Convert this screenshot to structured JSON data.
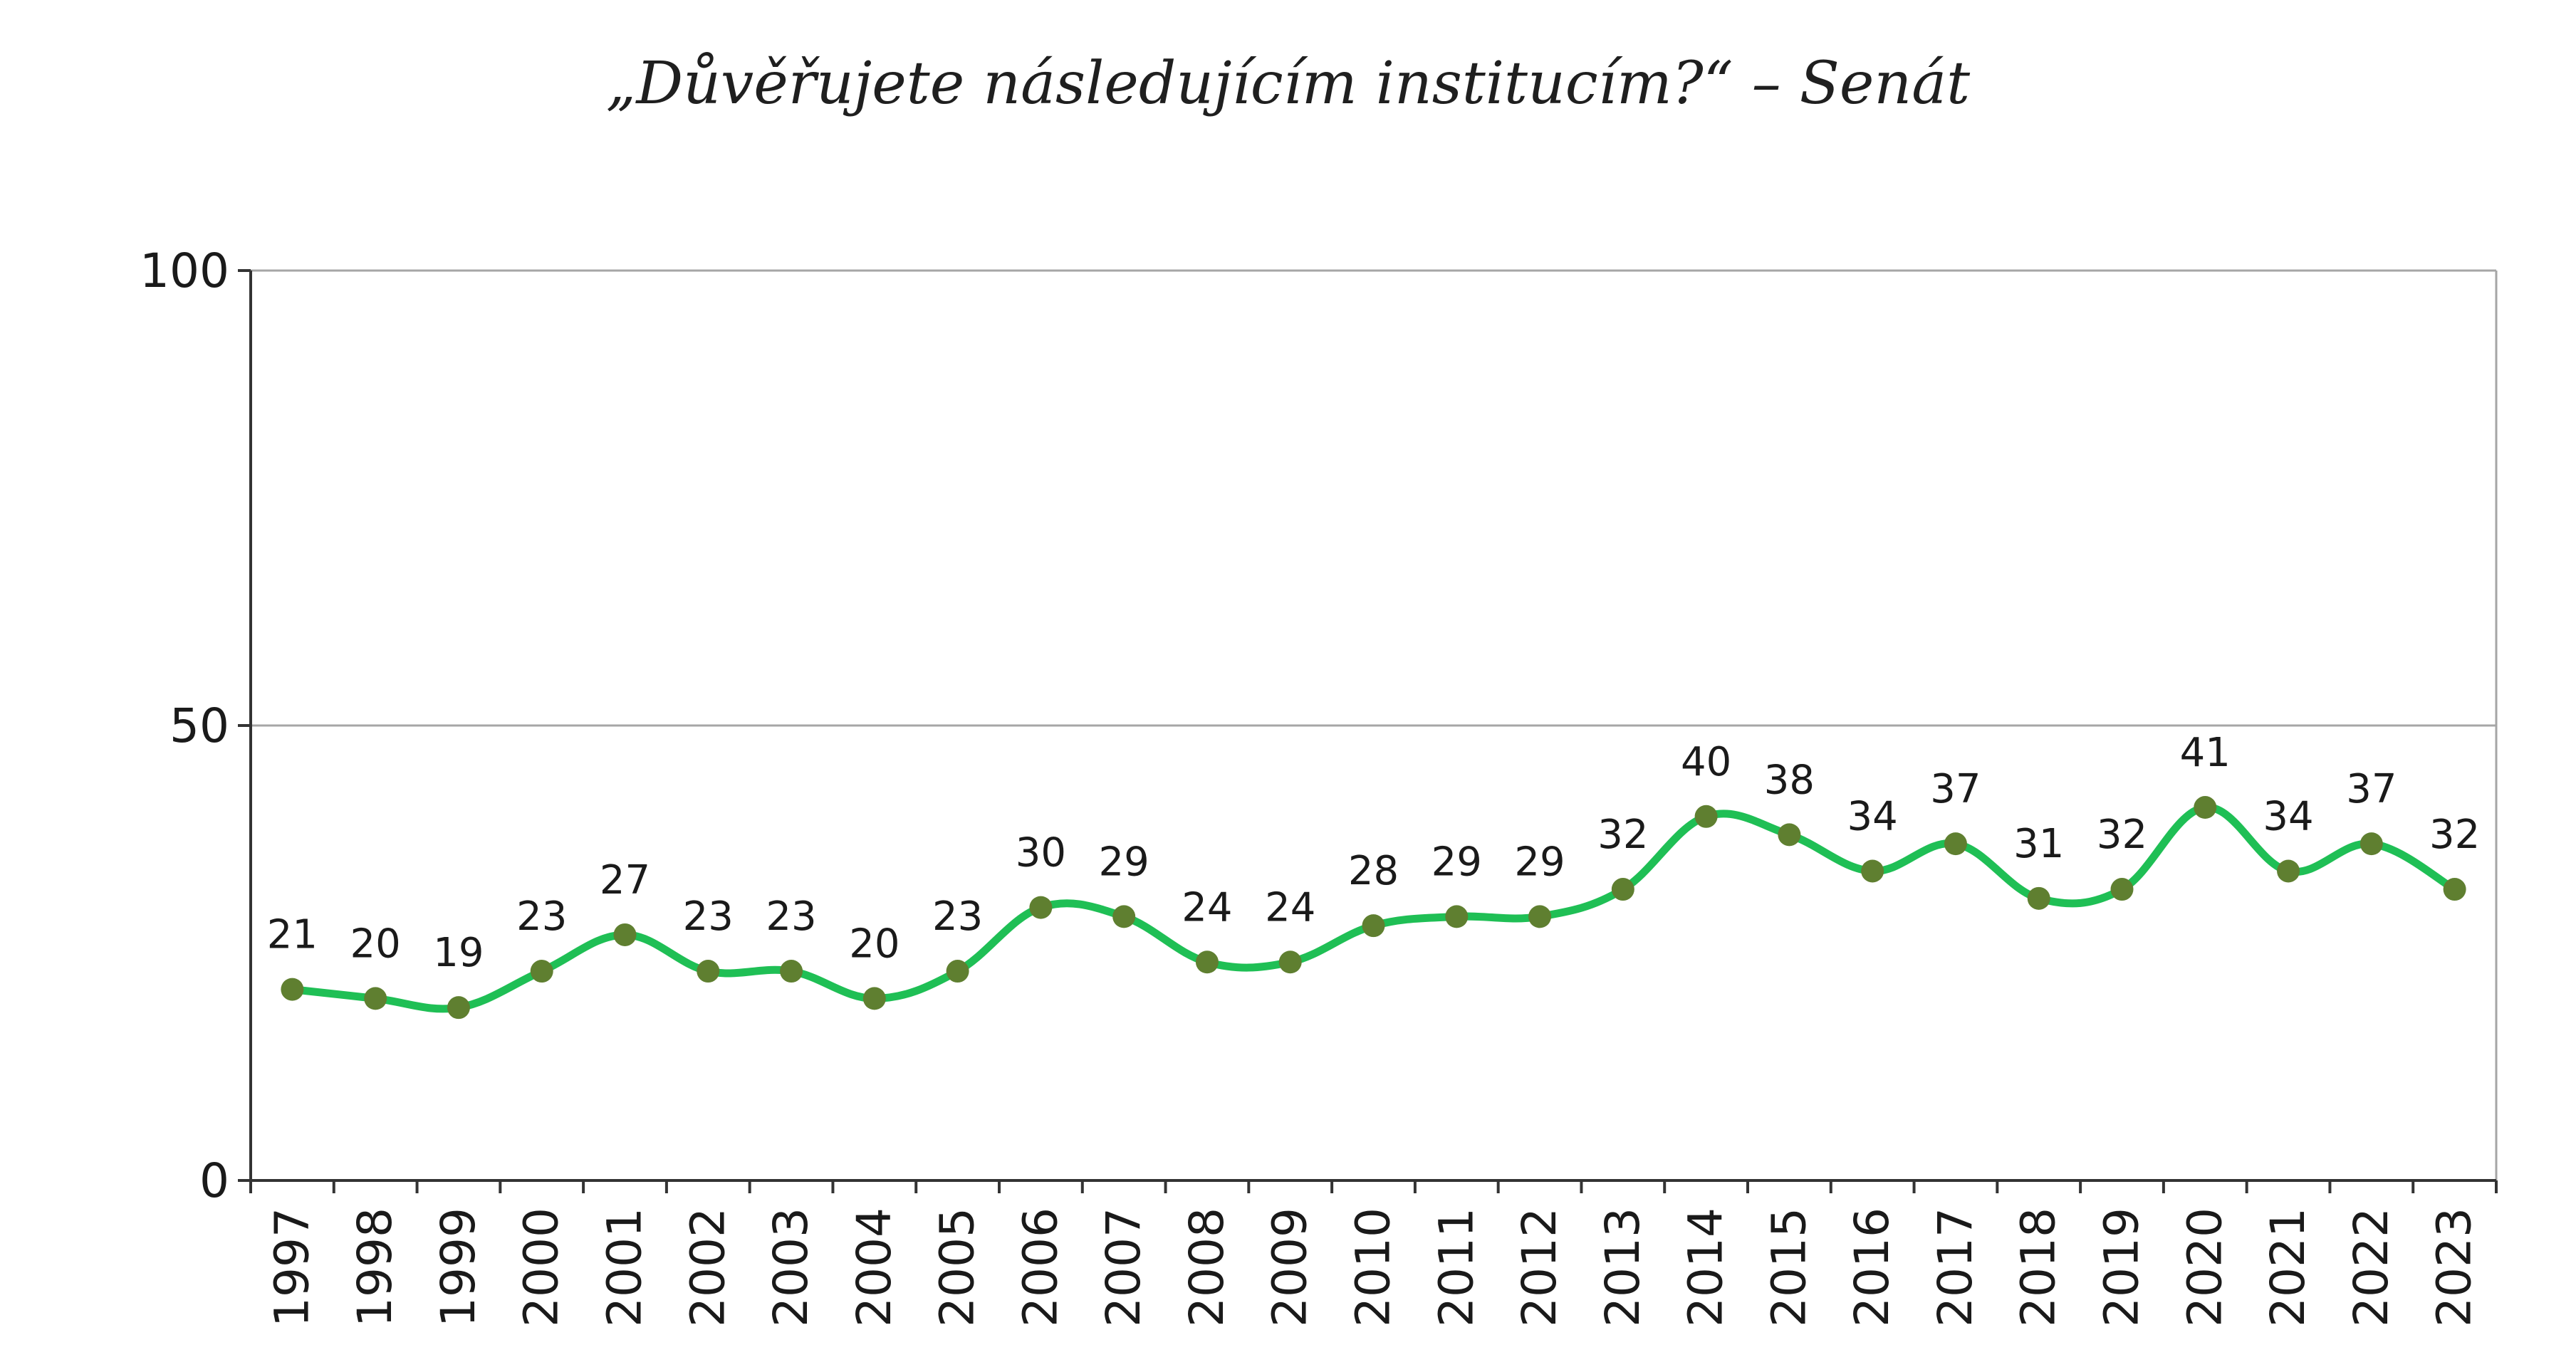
{
  "chart_data": {
    "type": "line",
    "title": "„Důvěřujete následujícím institucím?“ – Senát",
    "xlabel": "",
    "ylabel": "",
    "ylim": [
      0,
      100
    ],
    "yticks": [
      0,
      50,
      100
    ],
    "grid": "horizontal at 50",
    "legend": "none",
    "x": [
      "1997",
      "1998",
      "1999",
      "2000",
      "2001",
      "2002",
      "2003",
      "2004",
      "2005",
      "2006",
      "2007",
      "2008",
      "2009",
      "2010",
      "2011",
      "2012",
      "2013",
      "2014",
      "2015",
      "2016",
      "2017",
      "2018",
      "2019",
      "2020",
      "2021",
      "2022",
      "2023"
    ],
    "series": [
      {
        "values": [
          21,
          20,
          19,
          23,
          27,
          23,
          23,
          20,
          23,
          30,
          29,
          24,
          24,
          28,
          29,
          29,
          32,
          40,
          38,
          34,
          37,
          31,
          32,
          41,
          34,
          37,
          32
        ]
      }
    ],
    "colors": {
      "line": "#1fbf55",
      "marker": "#5f7f30",
      "axis": "#333333",
      "grid": "#a6a6a6"
    }
  }
}
